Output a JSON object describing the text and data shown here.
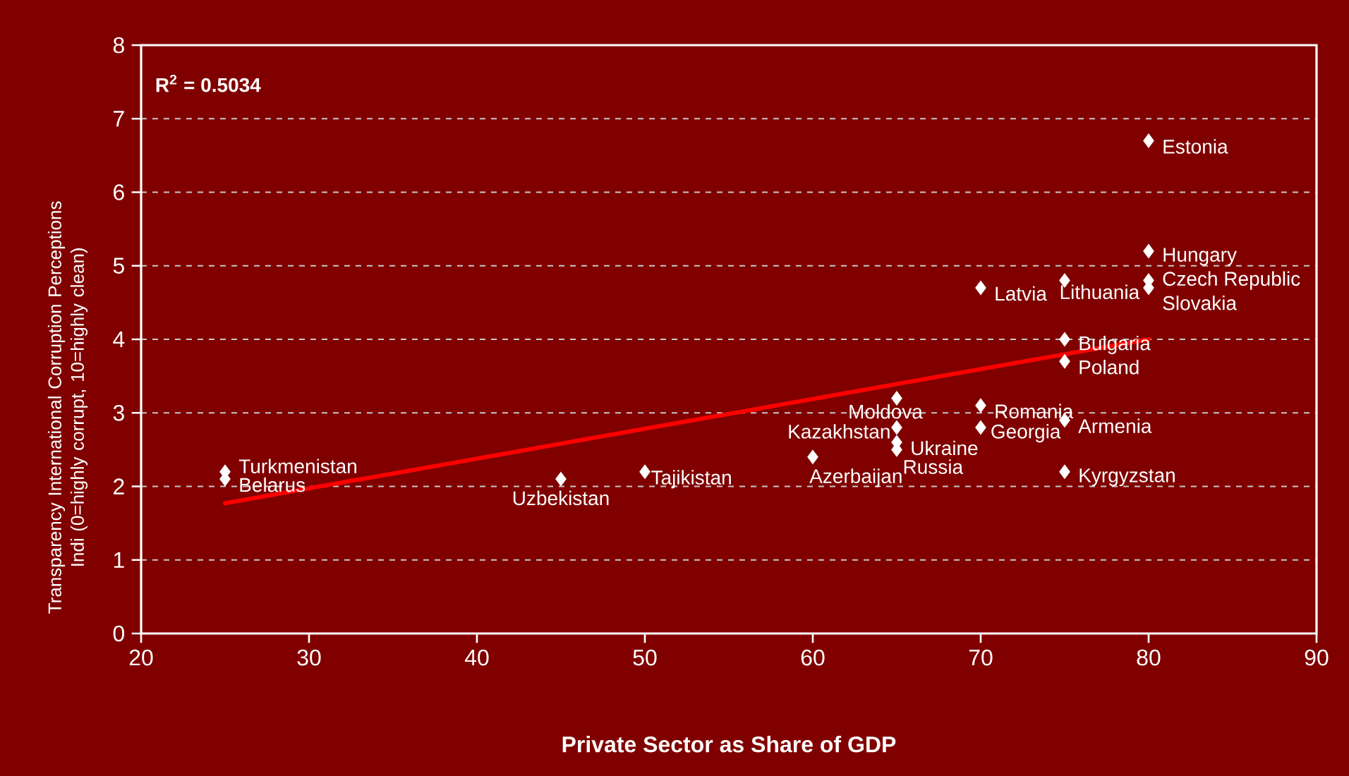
{
  "chart_data": {
    "type": "scatter",
    "xlabel": "Private Sector as Share of GDP",
    "ylabel": "Transparency International Corruption Perceptions Indi (0=highly corrupt, 10=highly clean)",
    "xlim": [
      20,
      90
    ],
    "xticks": [
      20,
      30,
      40,
      50,
      60,
      70,
      80,
      90
    ],
    "ylim": [
      0,
      8
    ],
    "yticks": [
      0,
      1,
      2,
      3,
      4,
      5,
      6,
      7,
      8
    ],
    "grid": "y",
    "marker": "diamond",
    "series": [
      {
        "color": "#ffffff",
        "x": [
          80,
          80,
          80,
          80,
          75,
          70,
          75,
          75,
          70,
          65,
          70,
          75,
          65,
          65,
          65,
          60,
          75,
          25,
          25,
          45,
          50
        ],
        "values": [
          6.7,
          5.2,
          4.8,
          4.7,
          4.8,
          4.7,
          4.0,
          3.7,
          3.1,
          3.2,
          2.8,
          2.9,
          2.8,
          2.6,
          2.5,
          2.4,
          2.2,
          2.2,
          2.1,
          2.1,
          2.2
        ]
      },
      {
        "type": "line",
        "color": "#ff0000",
        "marker": "none",
        "x": [
          25,
          80
        ],
        "values": [
          1.77,
          4.0
        ]
      }
    ],
    "annotations": [
      "**R$^{2}$ = 0.5034**",
      {
        "text": "Estonia",
        "x": 80,
        "y": 6.7
      },
      {
        "text": "Hungary",
        "x": 80,
        "y": 5.2
      },
      {
        "text": "Czech Republic",
        "x": 80,
        "y": 4.8
      },
      {
        "text": "Slovakia",
        "x": 80,
        "y": 4.7
      },
      {
        "text": "Lithuania",
        "x": 75,
        "y": 4.8
      },
      {
        "text": "Latvia",
        "x": 70,
        "y": 4.7
      },
      {
        "text": "Bulgaria",
        "x": 75,
        "y": 4.0
      },
      {
        "text": "Poland",
        "x": 75,
        "y": 3.7
      },
      {
        "text": "Romania",
        "x": 70,
        "y": 3.1
      },
      {
        "text": "Moldova",
        "x": 65,
        "y": 3.2
      },
      {
        "text": "Georgia",
        "x": 70,
        "y": 2.8
      },
      {
        "text": "Armenia",
        "x": 75,
        "y": 2.9
      },
      {
        "text": "Kazakhstan",
        "x": 65,
        "y": 2.8
      },
      {
        "text": "Ukraine",
        "x": 65,
        "y": 2.6
      },
      {
        "text": "Russia",
        "x": 65,
        "y": 2.5
      },
      {
        "text": "Azerbaijan",
        "x": 60,
        "y": 2.4
      },
      {
        "text": "Kyrgyzstan",
        "x": 75,
        "y": 2.2
      },
      {
        "text": "Turkmenistan",
        "x": 25,
        "y": 2.2
      },
      {
        "text": "Belarus",
        "x": 25,
        "y": 2.1
      },
      {
        "text": "Uzbekistan",
        "x": 45,
        "y": 2.1
      },
      {
        "text": "Tajikistan",
        "x": 50,
        "y": 2.2
      }
    ]
  }
}
